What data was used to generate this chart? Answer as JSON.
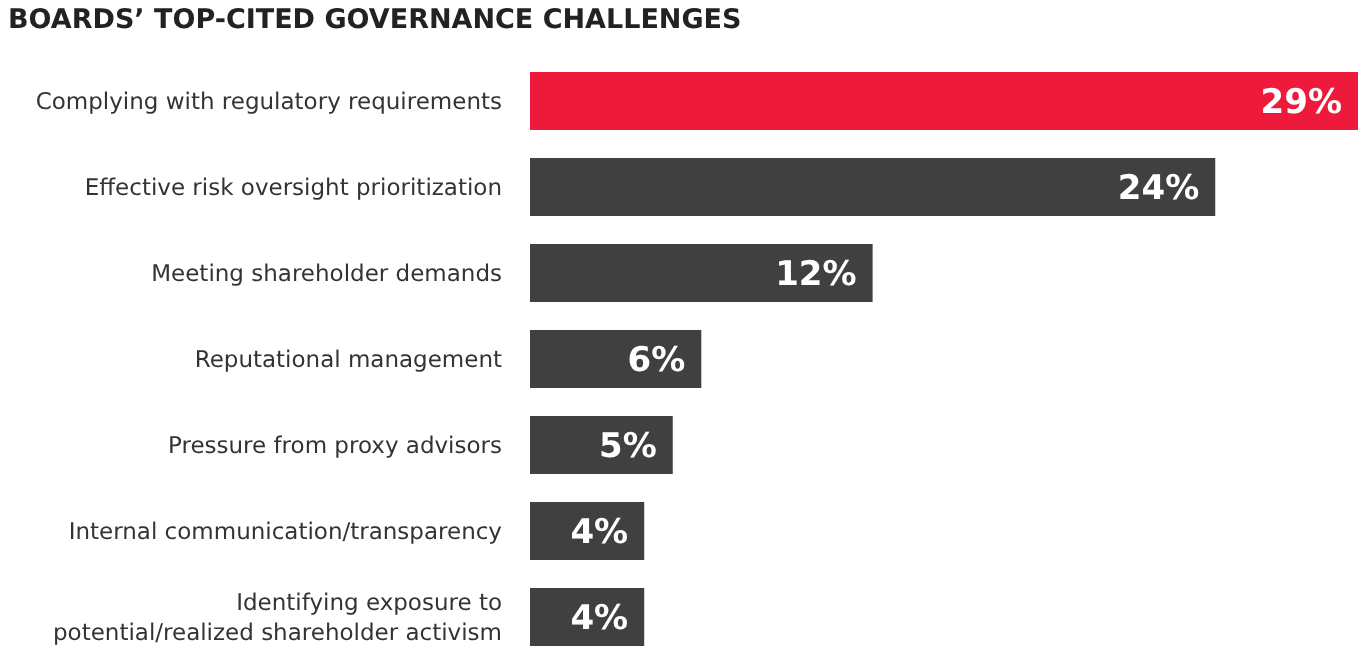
{
  "chart_data": {
    "type": "bar",
    "orientation": "horizontal",
    "title": "BOARDS’ TOP-CITED GOVERNANCE CHALLENGES",
    "categories": [
      "Complying with regulatory requirements",
      "Effective risk oversight prioritization",
      "Meeting shareholder demands",
      "Reputational management",
      "Pressure from proxy advisors",
      "Internal communication/transparency",
      "Identifying exposure to potential/realized shareholder activism"
    ],
    "values": [
      29,
      24,
      12,
      6,
      5,
      4,
      4
    ],
    "value_labels": [
      "29%",
      "24%",
      "12%",
      "6%",
      "5%",
      "4%",
      "4%"
    ],
    "colors": [
      "#ed1a3b",
      "#404040",
      "#404040",
      "#404040",
      "#404040",
      "#404040",
      "#404040"
    ],
    "xlim": [
      0,
      29
    ]
  }
}
